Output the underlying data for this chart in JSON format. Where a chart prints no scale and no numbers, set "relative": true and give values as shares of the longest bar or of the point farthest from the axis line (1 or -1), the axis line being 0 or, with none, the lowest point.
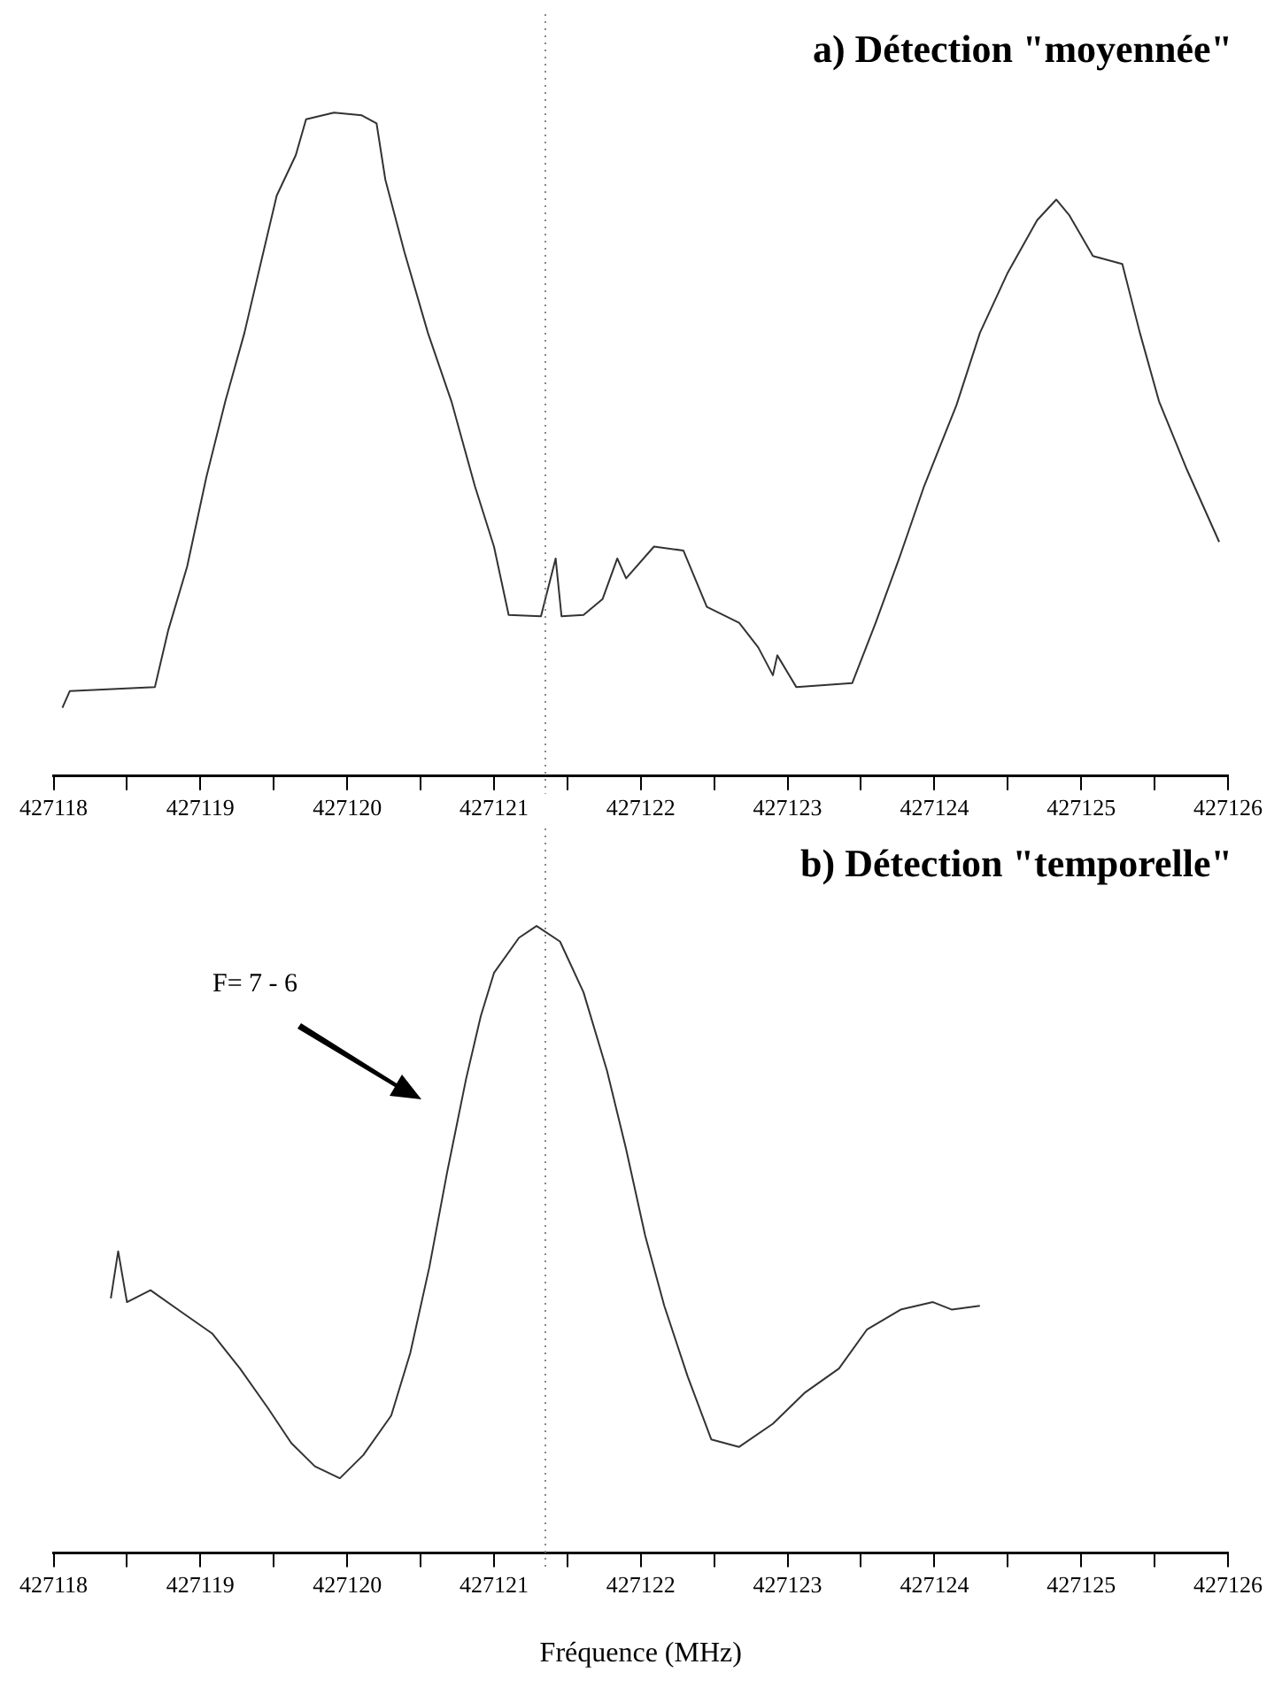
{
  "chart_data": [
    {
      "type": "line",
      "title": "a) Détection \"moyennée\"",
      "relative": true,
      "grid": false,
      "tick_labels": "x",
      "xlim": [
        427118,
        427126
      ],
      "xticks": [
        427118,
        {
          "value": 427118.5,
          "label": null
        },
        427119,
        {
          "value": 427119.5,
          "label": null
        },
        427120,
        {
          "value": 427120.5,
          "label": null
        },
        427121,
        {
          "value": 427121.5,
          "label": null
        },
        427122,
        {
          "value": 427122.5,
          "label": null
        },
        427123,
        {
          "value": 427123.5,
          "label": null
        },
        427124,
        {
          "value": 427124.5,
          "label": null
        },
        427125,
        {
          "value": 427125.5,
          "label": null
        },
        427126
      ],
      "ref_lines": [
        {
          "axis": "x",
          "value": 427121.35,
          "line_style": "dotted",
          "color": "#888888"
        }
      ],
      "series": [
        {
          "color": "#333333",
          "x": [
            427118.06,
            427118.11,
            427118.69,
            427118.78,
            427118.91,
            427119.04,
            427119.17,
            427119.3,
            427119.41,
            427119.52,
            427119.65,
            427119.72,
            427119.91,
            427120.1,
            427120.2,
            427120.26,
            427120.39,
            427120.55,
            427120.71,
            427120.87,
            427121,
            427121.1,
            427121.32,
            427121.42,
            427121.46,
            427121.61,
            427121.74,
            427121.84,
            427121.9,
            427122.09,
            427122.29,
            427122.45,
            427122.67,
            427122.8,
            427122.9,
            427122.93,
            427123.06,
            427123.44,
            427123.6,
            427123.76,
            427123.93,
            427124.15,
            427124.31,
            427124.5,
            427124.7,
            427124.83,
            427124.92,
            427125.08,
            427125.28,
            427125.4,
            427125.53,
            427125.72,
            427125.94
          ],
          "values": [
            0.103,
            0.128,
            0.134,
            0.219,
            0.316,
            0.45,
            0.565,
            0.668,
            0.772,
            0.875,
            0.936,
            0.99,
            1,
            0.996,
            0.984,
            0.899,
            0.79,
            0.668,
            0.565,
            0.437,
            0.346,
            0.243,
            0.241,
            0.328,
            0.241,
            0.243,
            0.267,
            0.328,
            0.298,
            0.346,
            0.34,
            0.255,
            0.231,
            0.194,
            0.152,
            0.182,
            0.134,
            0.14,
            0.231,
            0.328,
            0.437,
            0.559,
            0.668,
            0.759,
            0.838,
            0.869,
            0.845,
            0.784,
            0.772,
            0.668,
            0.565,
            0.462,
            0.353
          ]
        }
      ]
    },
    {
      "type": "line",
      "title": "b) Détection \"temporelle\"",
      "xlabel": "Fréquence (MHz)",
      "relative": true,
      "grid": false,
      "tick_labels": "x",
      "xlim": [
        427118,
        427126
      ],
      "xticks": [
        427118,
        {
          "value": 427118.5,
          "label": null
        },
        427119,
        {
          "value": 427119.5,
          "label": null
        },
        427120,
        {
          "value": 427120.5,
          "label": null
        },
        427121,
        {
          "value": 427121.5,
          "label": null
        },
        427122,
        {
          "value": 427122.5,
          "label": null
        },
        427123,
        {
          "value": 427123.5,
          "label": null
        },
        427124,
        {
          "value": 427124.5,
          "label": null
        },
        427125,
        {
          "value": 427125.5,
          "label": null
        },
        427126
      ],
      "ref_lines": [
        {
          "axis": "x",
          "value": 427121.35,
          "line_style": "dotted",
          "color": "#888888"
        }
      ],
      "annotations": [
        "F= 7 - 6"
      ],
      "series": [
        {
          "color": "#333333",
          "x": [
            427118.39,
            427118.44,
            427118.5,
            427118.66,
            427118.89,
            427119.08,
            427119.27,
            427119.46,
            427119.62,
            427119.78,
            427119.95,
            427120.11,
            427120.3,
            427120.43,
            427120.56,
            427120.68,
            427120.81,
            427120.91,
            427121,
            427121.17,
            427121.29,
            427121.45,
            427121.61,
            427121.77,
            427121.9,
            427122.03,
            427122.16,
            427122.32,
            427122.48,
            427122.67,
            427122.9,
            427123.12,
            427123.35,
            427123.54,
            427123.77,
            427123.99,
            427124.12,
            427124.31
          ],
          "values": [
            0.406,
            0.481,
            0.4,
            0.419,
            0.381,
            0.35,
            0.294,
            0.231,
            0.175,
            0.138,
            0.119,
            0.156,
            0.219,
            0.319,
            0.456,
            0.606,
            0.756,
            0.856,
            0.925,
            0.981,
            1,
            0.975,
            0.894,
            0.769,
            0.644,
            0.506,
            0.394,
            0.281,
            0.181,
            0.169,
            0.206,
            0.256,
            0.294,
            0.356,
            0.388,
            0.4,
            0.388,
            0.394
          ]
        }
      ]
    }
  ]
}
